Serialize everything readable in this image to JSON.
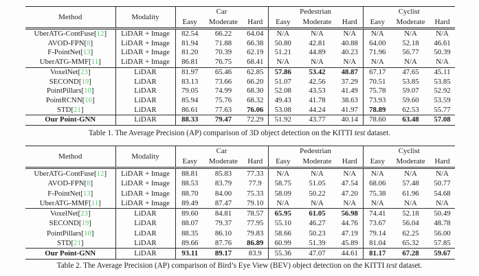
{
  "page": {
    "background": "#fdfdfd",
    "text_color": "#1e1e1e",
    "citation_color": "#58c96c"
  },
  "header_labels": {
    "method": "Method",
    "modality": "Modality",
    "groups": [
      "Car",
      "Pedestrian",
      "Cyclist"
    ],
    "difficulty": [
      "Easy",
      "Moderate",
      "Hard"
    ]
  },
  "tables": [
    {
      "id": "table1",
      "caption": {
        "prefix": "Table 1. The Average Precision (AP) comparison of 3D object detection on the KITTI ",
        "emph": "test",
        "suffix": " dataset."
      },
      "rows": [
        {
          "method": "UberATG-ContFuse",
          "cite": "12",
          "modality": "LiDAR + Image",
          "values": [
            "82.54",
            "66.22",
            "64.04",
            "N/A",
            "N/A",
            "N/A",
            "N/A",
            "N/A",
            "N/A"
          ],
          "bold": [],
          "rule_above": false,
          "bold_method": false
        },
        {
          "method": "AVOD-FPN",
          "cite": "8",
          "modality": "LiDAR + Image",
          "values": [
            "81.94",
            "71.88",
            "66.38",
            "50.80",
            "42.81",
            "40.88",
            "64.00",
            "52.18",
            "46.61"
          ],
          "bold": [],
          "rule_above": false,
          "bold_method": false
        },
        {
          "method": "F-PointNet",
          "cite": "13",
          "modality": "LiDAR + Image",
          "values": [
            "81.20",
            "70.39",
            "62.19",
            "51.21",
            "44.89",
            "40.23",
            "71.96",
            "56.77",
            "50.39"
          ],
          "bold": [],
          "rule_above": false,
          "bold_method": false
        },
        {
          "method": "UberATG-MMF",
          "cite": "11",
          "modality": "LiDAR + Image",
          "values": [
            "86.81",
            "76.75",
            "68.41",
            "N/A",
            "N/A",
            "N/A",
            "N/A",
            "N/A",
            "N/A"
          ],
          "bold": [],
          "rule_above": false,
          "bold_method": false
        },
        {
          "method": "VoxelNet",
          "cite": "23",
          "modality": "LiDAR",
          "values": [
            "81.97",
            "65.46",
            "62.85",
            "57.86",
            "53.42",
            "48.87",
            "67.17",
            "47.65",
            "45.11"
          ],
          "bold": [
            3,
            4,
            5
          ],
          "rule_above": true,
          "bold_method": false
        },
        {
          "method": "SECOND",
          "cite": "19",
          "modality": "LiDAR",
          "values": [
            "83.13",
            "73.66",
            "66.20",
            "51.07",
            "42.56",
            "37.29",
            "70.51",
            "53.85",
            "53.85"
          ],
          "bold": [],
          "rule_above": false,
          "bold_method": false
        },
        {
          "method": "PointPillars",
          "cite": "10",
          "modality": "LiDAR",
          "values": [
            "79.05",
            "74.99",
            "68.30",
            "52.08",
            "43.53",
            "41.49",
            "75.78",
            "59.07",
            "52.92"
          ],
          "bold": [],
          "rule_above": false,
          "bold_method": false
        },
        {
          "method": "PointRCNN",
          "cite": "16",
          "modality": "LiDAR",
          "values": [
            "85.94",
            "75.76",
            "68.32",
            "49.43",
            "41.78",
            "38.63",
            "73.93",
            "59.60",
            "53.59"
          ],
          "bold": [],
          "rule_above": false,
          "bold_method": false
        },
        {
          "method": "STD",
          "cite": "21",
          "modality": "LiDAR",
          "values": [
            "86.61",
            "77.63",
            "76.06",
            "53.08",
            "44.24",
            "41.97",
            "78.89",
            "62.53",
            "55.77"
          ],
          "bold": [
            2,
            6
          ],
          "rule_above": false,
          "bold_method": false
        },
        {
          "method": "Our Point-GNN",
          "cite": null,
          "modality": "LiDAR",
          "values": [
            "88.33",
            "79.47",
            "72.29",
            "51.92",
            "43.77",
            "40.14",
            "78.60",
            "63.48",
            "57.08"
          ],
          "bold": [
            0,
            1,
            7,
            8
          ],
          "rule_above": true,
          "bold_method": true
        }
      ]
    },
    {
      "id": "table2",
      "caption": {
        "prefix": "Table 2. The Average Precision (AP) comparison of Bird’s Eye View (BEV) object detection on the KITTI ",
        "emph": "test",
        "suffix": " dataset."
      },
      "rows": [
        {
          "method": "UberATG-ContFuse",
          "cite": "12",
          "modality": "LiDAR + Image",
          "values": [
            "88.81",
            "85.83",
            "77.33",
            "N/A",
            "N/A",
            "N/A",
            "N/A",
            "N/A",
            "N/A"
          ],
          "bold": [],
          "rule_above": false,
          "bold_method": false
        },
        {
          "method": "AVOD-FPN",
          "cite": "8",
          "modality": "LiDAR + Image",
          "values": [
            "88.53",
            "83.79",
            "77.9",
            "58.75",
            "51.05",
            "47.54",
            "68.06",
            "57.48",
            "50.77"
          ],
          "bold": [],
          "rule_above": false,
          "bold_method": false
        },
        {
          "method": "F-PointNet",
          "cite": "13",
          "modality": "LiDAR + Image",
          "values": [
            "88.70",
            "84.00",
            "75.33",
            "58.09",
            "50.22",
            "47.20",
            "75.38",
            "61.96",
            "54.68"
          ],
          "bold": [],
          "rule_above": false,
          "bold_method": false
        },
        {
          "method": "UberATG-MMF",
          "cite": "11",
          "modality": "LiDAR + Image",
          "values": [
            "89.49",
            "87.47",
            "79.10",
            "N/A",
            "N/A",
            "N/A",
            "N/A",
            "N/A",
            "N/A"
          ],
          "bold": [],
          "rule_above": false,
          "bold_method": false
        },
        {
          "method": "VoxelNet",
          "cite": "23",
          "modality": "LiDAR",
          "values": [
            "89.60",
            "84.81",
            "78.57",
            "65.95",
            "61.05",
            "56.98",
            "74.41",
            "52.18",
            "50.49"
          ],
          "bold": [
            3,
            4,
            5
          ],
          "rule_above": true,
          "bold_method": false
        },
        {
          "method": "SECOND",
          "cite": "19",
          "modality": "LiDAR",
          "values": [
            "88.07",
            "79.37",
            "77.95",
            "55.10",
            "46.27",
            "44.76",
            "73.67",
            "56.04",
            "48.78"
          ],
          "bold": [],
          "rule_above": false,
          "bold_method": false
        },
        {
          "method": "PointPillars",
          "cite": "10",
          "modality": "LiDAR",
          "values": [
            "88.35",
            "86.10",
            "79.83",
            "58.66",
            "50.23",
            "47.19",
            "79.14",
            "62.25",
            "56.00"
          ],
          "bold": [],
          "rule_above": false,
          "bold_method": false
        },
        {
          "method": "STD",
          "cite": "21",
          "modality": "LiDAR",
          "values": [
            "89.66",
            "87.76",
            "86.89",
            "60.99",
            "51.39",
            "45.89",
            "81.04",
            "65.32",
            "57.85"
          ],
          "bold": [
            2
          ],
          "rule_above": false,
          "bold_method": false
        },
        {
          "method": "Our Point-GNN",
          "cite": null,
          "modality": "LiDAR",
          "values": [
            "93.11",
            "89.17",
            "83.9",
            "55.36",
            "47.07",
            "44.61",
            "81.17",
            "67.28",
            "59.67"
          ],
          "bold": [
            0,
            1,
            6,
            7,
            8
          ],
          "rule_above": true,
          "bold_method": true
        }
      ]
    }
  ]
}
